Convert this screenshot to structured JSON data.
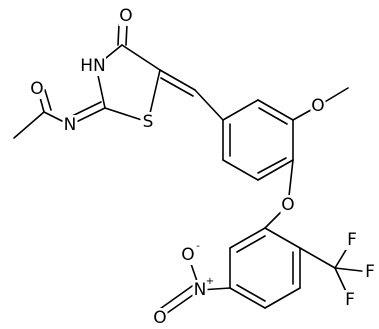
{
  "atoms": [
    {
      "label": "O"
    },
    {
      "label": "HN"
    },
    {
      "label": "S"
    },
    {
      "label": "N"
    },
    {
      "label": "O"
    },
    {
      "label": "O"
    },
    {
      "label": "O"
    },
    {
      "label": "N",
      "charge": "+"
    },
    {
      "label": "O",
      "charge": "-"
    },
    {
      "label": "O"
    },
    {
      "label": "F"
    },
    {
      "label": "F"
    },
    {
      "label": "F"
    }
  ]
}
